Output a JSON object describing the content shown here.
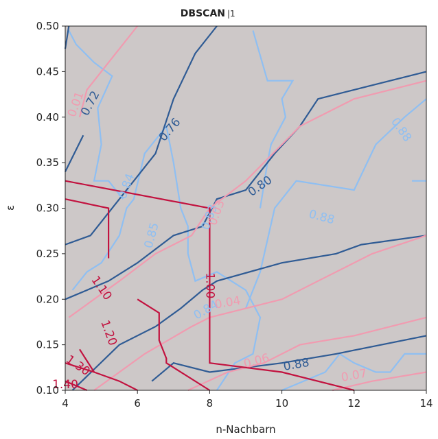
{
  "chart_data": {
    "type": "contour",
    "title": "DBSCAN",
    "title_suffix": "|1",
    "xlabel": "n-Nachbarn",
    "ylabel": "ε",
    "xlim": [
      4,
      14
    ],
    "ylim": [
      0.1,
      0.5
    ],
    "x_ticks": [
      4,
      6,
      8,
      10,
      12,
      14
    ],
    "y_ticks": [
      0.1,
      0.15,
      0.2,
      0.25,
      0.3,
      0.35,
      0.4,
      0.45,
      0.5
    ],
    "background_color": "#cdc8c8",
    "colors": {
      "light_blue": "#8fbff2",
      "dark_blue": "#2f5b94",
      "pink": "#f19bb0",
      "crimson": "#c2123f"
    },
    "series": [
      {
        "name": "light_blue_contours",
        "color": "#8fbff2",
        "lines": [
          {
            "label": "0.84",
            "points": [
              [
                4.1,
                0.495
              ],
              [
                4.3,
                0.48
              ],
              [
                4.8,
                0.46
              ],
              [
                5.3,
                0.445
              ],
              [
                4.9,
                0.41
              ],
              [
                5.0,
                0.37
              ],
              [
                4.8,
                0.33
              ],
              [
                5.2,
                0.33
              ],
              [
                5.6,
                0.31
              ]
            ]
          },
          {
            "label": "0.85",
            "points": [
              [
                4.2,
                0.21
              ],
              [
                4.6,
                0.23
              ],
              [
                5.0,
                0.24
              ],
              [
                5.5,
                0.27
              ],
              [
                5.7,
                0.3
              ],
              [
                5.9,
                0.31
              ],
              [
                6.2,
                0.36
              ],
              [
                6.8,
                0.39
              ],
              [
                7.0,
                0.35
              ],
              [
                7.2,
                0.3
              ],
              [
                7.4,
                0.28
              ],
              [
                7.4,
                0.25
              ],
              [
                7.6,
                0.22
              ],
              [
                8.2,
                0.23
              ],
              [
                9.0,
                0.21
              ],
              [
                9.4,
                0.18
              ],
              [
                9.2,
                0.14
              ],
              [
                8.7,
                0.13
              ],
              [
                8.2,
                0.1
              ]
            ]
          },
          {
            "label": "0.88",
            "points": [
              [
                9.0,
                0.19
              ],
              [
                9.4,
                0.23
              ],
              [
                9.8,
                0.3
              ],
              [
                10.4,
                0.33
              ],
              [
                12.0,
                0.32
              ],
              [
                12.6,
                0.37
              ],
              [
                13.4,
                0.4
              ],
              [
                14,
                0.42
              ]
            ]
          },
          {
            "label": "0.88",
            "points": [
              [
                9.2,
                0.495
              ],
              [
                9.6,
                0.44
              ],
              [
                10.3,
                0.44
              ],
              [
                10.0,
                0.42
              ],
              [
                10.1,
                0.4
              ],
              [
                9.7,
                0.37
              ],
              [
                9.6,
                0.35
              ],
              [
                9.4,
                0.3
              ]
            ]
          },
          {
            "label": "0.88",
            "points": [
              [
                11.6,
                0.14
              ],
              [
                12.0,
                0.13
              ],
              [
                12.6,
                0.12
              ],
              [
                13.0,
                0.12
              ],
              [
                13.4,
                0.14
              ],
              [
                14,
                0.14
              ]
            ]
          },
          {
            "label": "0.88",
            "points": [
              [
                13.6,
                0.33
              ],
              [
                14,
                0.33
              ]
            ]
          },
          {
            "label": "0.88",
            "points": [
              [
                10.0,
                0.1
              ],
              [
                11.2,
                0.12
              ],
              [
                11.6,
                0.14
              ]
            ]
          }
        ]
      },
      {
        "name": "dark_blue_contours",
        "color": "#2f5b94",
        "lines": [
          {
            "label": "0.72",
            "points": [
              [
                4.0,
                0.475
              ],
              [
                4.1,
                0.5
              ]
            ]
          },
          {
            "label": "0.76",
            "points": [
              [
                4.0,
                0.34
              ],
              [
                4.5,
                0.38
              ]
            ]
          },
          {
            "label": "0.76",
            "points": [
              [
                4.0,
                0.26
              ],
              [
                4.7,
                0.27
              ],
              [
                5.5,
                0.31
              ],
              [
                6.5,
                0.36
              ],
              [
                7.0,
                0.42
              ],
              [
                7.6,
                0.47
              ],
              [
                8.2,
                0.5
              ]
            ]
          },
          {
            "label": "0.80",
            "points": [
              [
                4.0,
                0.2
              ],
              [
                5.2,
                0.22
              ],
              [
                6.0,
                0.24
              ],
              [
                7.0,
                0.27
              ],
              [
                7.8,
                0.28
              ],
              [
                8.2,
                0.31
              ],
              [
                9.0,
                0.32
              ],
              [
                9.8,
                0.36
              ],
              [
                10.5,
                0.39
              ],
              [
                11.0,
                0.42
              ],
              [
                12.0,
                0.43
              ],
              [
                14,
                0.45
              ]
            ]
          },
          {
            "label": "0.84",
            "points": [
              [
                4.2,
                0.1
              ],
              [
                5.5,
                0.15
              ],
              [
                6.5,
                0.17
              ],
              [
                7.2,
                0.19
              ],
              [
                7.8,
                0.21
              ],
              [
                8.2,
                0.22
              ],
              [
                10.0,
                0.24
              ],
              [
                11.5,
                0.25
              ],
              [
                12.2,
                0.26
              ],
              [
                14,
                0.27
              ]
            ]
          },
          {
            "label": "0.88",
            "points": [
              [
                6.4,
                0.11
              ],
              [
                7.0,
                0.13
              ],
              [
                8.0,
                0.12
              ],
              [
                10.0,
                0.13
              ],
              [
                11.5,
                0.14
              ],
              [
                14,
                0.16
              ]
            ]
          }
        ]
      },
      {
        "name": "pink_contours",
        "color": "#f19bb0",
        "lines": [
          {
            "label": "0.01",
            "points": [
              [
                4.4,
                0.4
              ],
              [
                4.6,
                0.43
              ],
              [
                5.2,
                0.46
              ],
              [
                6.0,
                0.5
              ]
            ]
          },
          {
            "label": "0.03",
            "points": [
              [
                4.1,
                0.18
              ],
              [
                5.5,
                0.22
              ],
              [
                6.5,
                0.25
              ],
              [
                7.5,
                0.27
              ],
              [
                8.0,
                0.3
              ],
              [
                9.0,
                0.33
              ],
              [
                10.0,
                0.37
              ],
              [
                10.5,
                0.39
              ],
              [
                12.0,
                0.42
              ],
              [
                14,
                0.44
              ]
            ]
          },
          {
            "label": "0.04",
            "points": [
              [
                4.8,
                0.1
              ],
              [
                5.5,
                0.12
              ],
              [
                6.2,
                0.14
              ],
              [
                7.5,
                0.17
              ],
              [
                8.0,
                0.18
              ],
              [
                10.0,
                0.2
              ],
              [
                11.0,
                0.22
              ],
              [
                12.5,
                0.25
              ],
              [
                14,
                0.27
              ]
            ]
          },
          {
            "label": "0.06",
            "points": [
              [
                7.4,
                0.1
              ],
              [
                8.5,
                0.12
              ],
              [
                9.5,
                0.13
              ],
              [
                10.5,
                0.15
              ],
              [
                12.0,
                0.16
              ],
              [
                14,
                0.18
              ]
            ]
          },
          {
            "label": "0.07",
            "points": [
              [
                11.4,
                0.1
              ],
              [
                12.5,
                0.11
              ],
              [
                14,
                0.12
              ]
            ]
          }
        ]
      },
      {
        "name": "crimson_contours",
        "color": "#c2123f",
        "lines": [
          {
            "label": "1.00",
            "points": [
              [
                4.0,
                0.33
              ],
              [
                8.0,
                0.3
              ],
              [
                8.0,
                0.13
              ],
              [
                10.0,
                0.12
              ],
              [
                12.0,
                0.1
              ]
            ]
          },
          {
            "label": "1.10",
            "points": [
              [
                4.0,
                0.31
              ],
              [
                5.2,
                0.3
              ],
              [
                5.2,
                0.245
              ]
            ]
          },
          {
            "label": "1.20",
            "points": [
              [
                6.0,
                0.2
              ],
              [
                6.6,
                0.185
              ],
              [
                6.6,
                0.155
              ],
              [
                6.8,
                0.135
              ],
              [
                6.8,
                0.13
              ],
              [
                8.0,
                0.1
              ]
            ]
          },
          {
            "label": "1.30",
            "points": [
              [
                4.0,
                0.13
              ],
              [
                4.8,
                0.12
              ],
              [
                5.5,
                0.11
              ],
              [
                6.0,
                0.1
              ]
            ]
          },
          {
            "label": "1.40",
            "points": [
              [
                4.0,
                0.11
              ],
              [
                4.6,
                0.1
              ]
            ]
          },
          {
            "label": "1.20",
            "points": [
              [
                4.4,
                0.145
              ],
              [
                4.8,
                0.12
              ]
            ]
          }
        ]
      }
    ],
    "annotations": [
      {
        "text": "0.72",
        "x": 4.7,
        "y": 0.415,
        "color": "#2f5b94",
        "rotation": -62
      },
      {
        "text": "0.01",
        "x": 4.3,
        "y": 0.414,
        "color": "#f19bb0",
        "rotation": -70
      },
      {
        "text": "0.76",
        "x": 6.9,
        "y": 0.386,
        "color": "#2f5b94",
        "rotation": -50
      },
      {
        "text": "0.84",
        "x": 5.7,
        "y": 0.324,
        "color": "#8fbff2",
        "rotation": -70
      },
      {
        "text": "0.85",
        "x": 6.4,
        "y": 0.27,
        "color": "#8fbff2",
        "rotation": -75
      },
      {
        "text": "0.83",
        "x": 8.0,
        "y": 0.29,
        "color": "#8fbff2",
        "rotation": -70
      },
      {
        "text": "0.03",
        "x": 8.2,
        "y": 0.295,
        "color": "#f19bb0",
        "rotation": -70
      },
      {
        "text": "0.80",
        "x": 9.4,
        "y": 0.324,
        "color": "#2f5b94",
        "rotation": -35
      },
      {
        "text": "0.88",
        "x": 13.3,
        "y": 0.386,
        "color": "#8fbff2",
        "rotation": 55
      },
      {
        "text": "0.88",
        "x": 11.1,
        "y": 0.29,
        "color": "#8fbff2",
        "rotation": 15
      },
      {
        "text": "1.10",
        "x": 5.0,
        "y": 0.212,
        "color": "#c2123f",
        "rotation": 55
      },
      {
        "text": "1.00",
        "x": 8.0,
        "y": 0.215,
        "color": "#c2123f",
        "rotation": 90
      },
      {
        "text": "0.84",
        "x": 7.9,
        "y": 0.188,
        "color": "#8fbff2",
        "rotation": -30
      },
      {
        "text": "0.04",
        "x": 8.5,
        "y": 0.196,
        "color": "#f19bb0",
        "rotation": -10
      },
      {
        "text": "1.20",
        "x": 5.2,
        "y": 0.163,
        "color": "#c2123f",
        "rotation": 70
      },
      {
        "text": "0.06",
        "x": 9.3,
        "y": 0.132,
        "color": "#f19bb0",
        "rotation": -15
      },
      {
        "text": "0.88",
        "x": 10.4,
        "y": 0.128,
        "color": "#2f5b94",
        "rotation": -10
      },
      {
        "text": "0.07",
        "x": 12.0,
        "y": 0.116,
        "color": "#f19bb0",
        "rotation": -10
      },
      {
        "text": "1.30",
        "x": 4.35,
        "y": 0.127,
        "color": "#c2123f",
        "rotation": 35
      },
      {
        "text": "1.40",
        "x": 4.0,
        "y": 0.106,
        "color": "#c2123f",
        "rotation": 0
      }
    ]
  }
}
